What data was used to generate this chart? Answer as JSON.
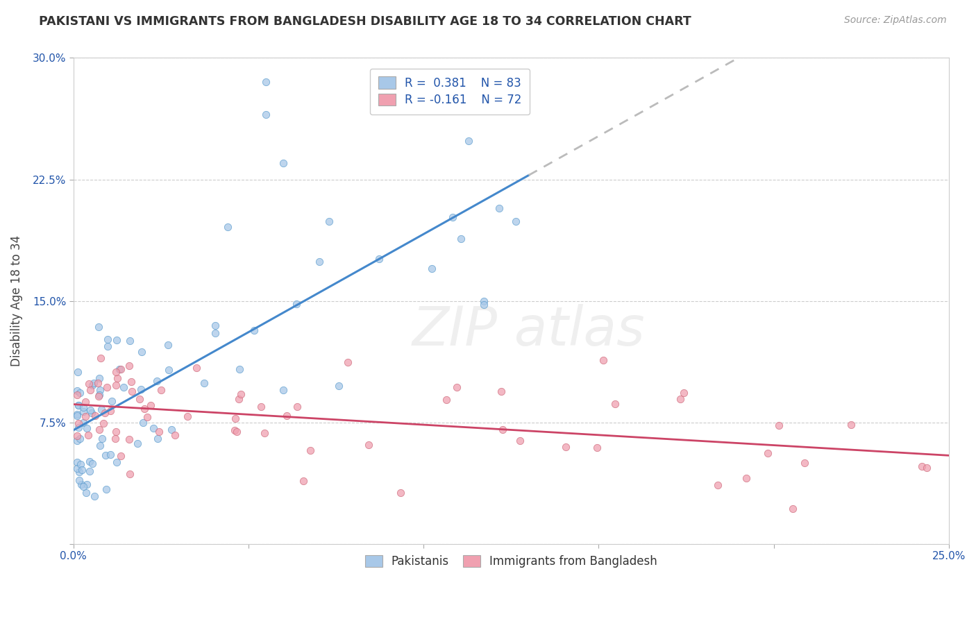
{
  "title": "PAKISTANI VS IMMIGRANTS FROM BANGLADESH DISABILITY AGE 18 TO 34 CORRELATION CHART",
  "source": "Source: ZipAtlas.com",
  "ylabel": "Disability Age 18 to 34",
  "xlim": [
    0.0,
    0.25
  ],
  "ylim": [
    0.0,
    0.3
  ],
  "xtick_vals": [
    0.0,
    0.05,
    0.1,
    0.15,
    0.2,
    0.25
  ],
  "xtick_labels": [
    "0.0%",
    "",
    "",
    "",
    "",
    "25.0%"
  ],
  "ytick_vals": [
    0.0,
    0.075,
    0.15,
    0.225,
    0.3
  ],
  "ytick_labels": [
    "",
    "7.5%",
    "15.0%",
    "22.5%",
    "30.0%"
  ],
  "r1": 0.381,
  "n1": 83,
  "r2": -0.161,
  "n2": 72,
  "blue_face": "#A8C8E8",
  "blue_edge": "#5599CC",
  "pink_face": "#F0A0B0",
  "pink_edge": "#CC6677",
  "trend_blue": "#4488CC",
  "trend_pink": "#CC4466",
  "trend_gray": "#BBBBBB",
  "dot_size": 55,
  "dot_alpha": 0.75
}
